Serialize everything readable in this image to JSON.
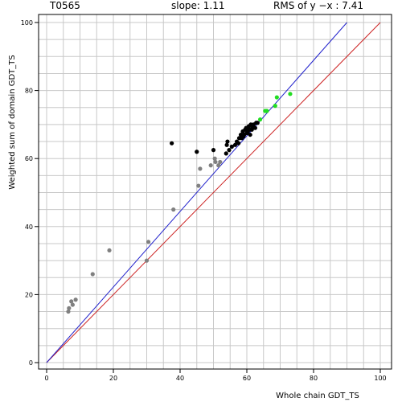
{
  "header": {
    "target": "T0565",
    "slope": "slope: 1.11",
    "rms": "RMS of  y −x : 7.41"
  },
  "chart_data": {
    "type": "scatter",
    "xlabel": "Whole chain GDT_TS",
    "ylabel": "Weighted sum of domain GDT_TS",
    "xlim": [
      0,
      100
    ],
    "ylim": [
      0,
      100
    ],
    "x_ticks": [
      "0",
      "20",
      "40",
      "60",
      "80",
      "100"
    ],
    "y_ticks": [
      "0",
      "20",
      "40",
      "60",
      "80",
      "100"
    ],
    "grid": true,
    "colors": {
      "gray_points": "#808080",
      "black_points": "#000000",
      "green_points": "#22dd22",
      "diagonal_line": "#cc2222",
      "fit_line": "#2222cc",
      "grid": "#c8c8c8"
    },
    "lines": [
      {
        "kind": "y=x",
        "from": [
          0,
          0
        ],
        "to": [
          100,
          100
        ],
        "color": "#cc2222"
      },
      {
        "kind": "fit",
        "slope": 1.11,
        "from": [
          0,
          0
        ],
        "to": [
          90,
          100
        ],
        "color": "#2222cc"
      }
    ],
    "series": [
      {
        "color": "#808080",
        "points": [
          [
            6.5,
            15
          ],
          [
            6.7,
            16
          ],
          [
            7.4,
            18
          ],
          [
            7.8,
            17
          ],
          [
            8.7,
            18.5
          ],
          [
            13.8,
            26
          ],
          [
            18.8,
            33
          ],
          [
            30,
            30
          ],
          [
            30.5,
            35.5
          ],
          [
            38,
            45
          ],
          [
            45.5,
            52
          ],
          [
            46,
            57
          ],
          [
            49.2,
            58
          ],
          [
            50.4,
            60
          ],
          [
            50.6,
            59
          ],
          [
            51.5,
            58
          ],
          [
            52,
            59
          ]
        ]
      },
      {
        "color": "#000000",
        "points": [
          [
            37.5,
            64.5
          ],
          [
            45,
            62
          ],
          [
            50,
            62.5
          ],
          [
            53.8,
            61.5
          ],
          [
            54,
            64
          ],
          [
            54.2,
            65
          ],
          [
            54.7,
            62.5
          ],
          [
            55.5,
            63.5
          ],
          [
            56.5,
            64
          ],
          [
            57,
            65
          ],
          [
            57.5,
            64.5
          ],
          [
            57.7,
            66
          ],
          [
            58.2,
            67
          ],
          [
            58.5,
            66
          ],
          [
            58.8,
            68
          ],
          [
            59.2,
            67
          ],
          [
            59.5,
            68.5
          ],
          [
            59.8,
            69
          ],
          [
            60,
            67.5
          ],
          [
            60.3,
            68
          ],
          [
            60.6,
            69.5
          ],
          [
            60.8,
            68.5
          ],
          [
            61.2,
            70
          ],
          [
            61.5,
            68.5
          ],
          [
            61.7,
            69
          ],
          [
            62,
            70
          ],
          [
            62.5,
            69
          ],
          [
            62.8,
            70.5
          ],
          [
            63.2,
            70.5
          ],
          [
            61,
            67
          ],
          [
            59,
            66.5
          ]
        ]
      },
      {
        "color": "#22dd22",
        "points": [
          [
            64,
            71.5
          ],
          [
            65.5,
            74
          ],
          [
            66,
            74
          ],
          [
            68.5,
            75.5
          ],
          [
            69,
            78
          ],
          [
            73,
            79
          ]
        ]
      }
    ]
  }
}
